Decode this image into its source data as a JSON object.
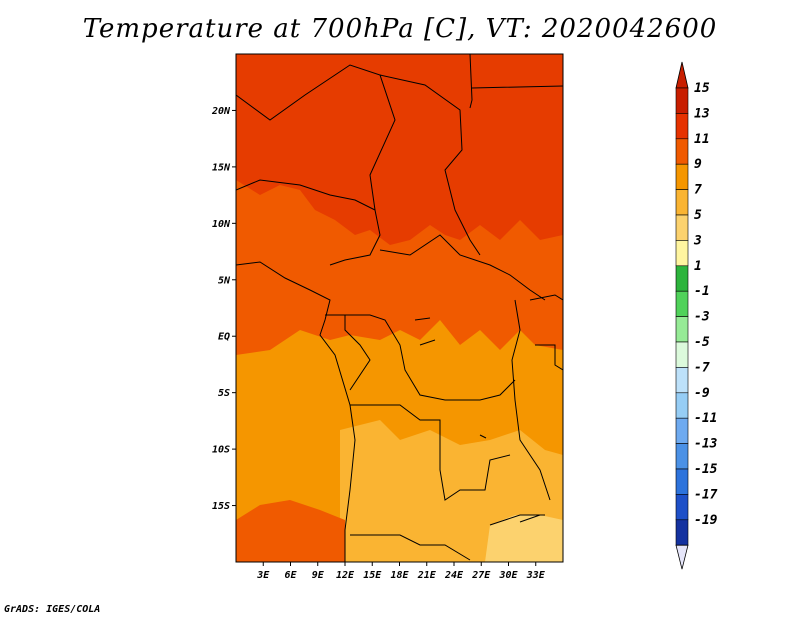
{
  "title": "Temperature at 700hPa [C], VT: 2020042600",
  "credit": "GrADS: IGES/COLA",
  "map": {
    "lon_range": [
      0,
      36
    ],
    "lat_range": [
      -20,
      25
    ],
    "lat_ticks": [
      {
        "value": 20,
        "label": "20N"
      },
      {
        "value": 15,
        "label": "15N"
      },
      {
        "value": 10,
        "label": "10N"
      },
      {
        "value": 5,
        "label": "5N"
      },
      {
        "value": 0,
        "label": "EQ"
      },
      {
        "value": -5,
        "label": "5S"
      },
      {
        "value": -10,
        "label": "10S"
      },
      {
        "value": -15,
        "label": "15S"
      }
    ],
    "lon_ticks": [
      {
        "value": 3,
        "label": "3E"
      },
      {
        "value": 6,
        "label": "6E"
      },
      {
        "value": 9,
        "label": "9E"
      },
      {
        "value": 12,
        "label": "12E"
      },
      {
        "value": 15,
        "label": "15E"
      },
      {
        "value": 18,
        "label": "18E"
      },
      {
        "value": 21,
        "label": "21E"
      },
      {
        "value": 24,
        "label": "24E"
      },
      {
        "value": 27,
        "label": "27E"
      },
      {
        "value": 30,
        "label": "30E"
      },
      {
        "value": 33,
        "label": "33E"
      }
    ]
  },
  "colorbar": {
    "levels": [
      {
        "label": "15",
        "color": "#c81e00"
      },
      {
        "label": "13",
        "color": "#e63200"
      },
      {
        "label": "11",
        "color": "#f05a00"
      },
      {
        "label": "9",
        "color": "#f59600"
      },
      {
        "label": "7",
        "color": "#fab432"
      },
      {
        "label": "5",
        "color": "#fcd26e"
      },
      {
        "label": "3",
        "color": "#fff5a0"
      },
      {
        "label": "1",
        "color": "#2db43c"
      },
      {
        "label": "-1",
        "color": "#50d25a"
      },
      {
        "label": "-3",
        "color": "#96eb96"
      },
      {
        "label": "-5",
        "color": "#dcfadc"
      },
      {
        "label": "-7",
        "color": "#bde1fa"
      },
      {
        "label": "-9",
        "color": "#96cdf5"
      },
      {
        "label": "-11",
        "color": "#6eaaf0"
      },
      {
        "label": "-13",
        "color": "#4b91e6"
      },
      {
        "label": "-15",
        "color": "#2d73dc"
      },
      {
        "label": "-17",
        "color": "#1e50c8"
      },
      {
        "label": "-19",
        "color": "#1432a0"
      }
    ],
    "top_color": "#c81e00",
    "bottom_color": "#0a0a6e",
    "below_color": "#e6e6fa"
  },
  "field_colors": {
    "hot": "#e63c00",
    "warm": "#f05a00",
    "mid": "#f59600",
    "mild": "#fab432",
    "cool": "#fcd26e"
  }
}
